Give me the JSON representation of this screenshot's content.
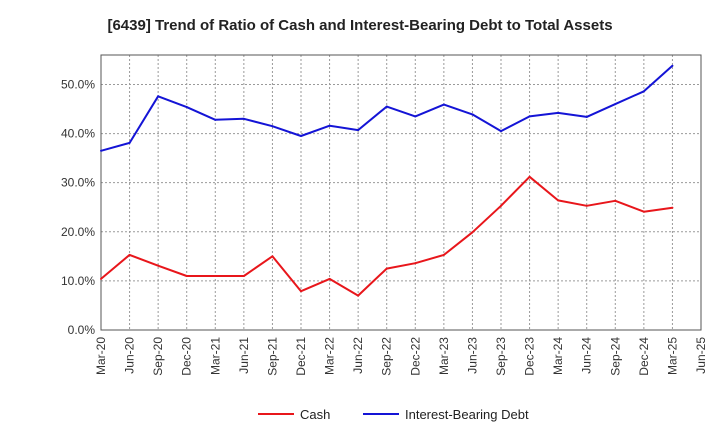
{
  "chart_data": {
    "type": "line",
    "title": "[6439]  Trend of Ratio of Cash and Interest-Bearing Debt to Total Assets",
    "xlabel": "",
    "ylabel": "",
    "x": [
      "Mar-20",
      "Jun-20",
      "Sep-20",
      "Dec-20",
      "Mar-21",
      "Jun-21",
      "Sep-21",
      "Dec-21",
      "Mar-22",
      "Jun-22",
      "Sep-22",
      "Dec-22",
      "Mar-23",
      "Jun-23",
      "Sep-23",
      "Dec-23",
      "Mar-24",
      "Jun-24",
      "Sep-24",
      "Dec-24",
      "Mar-25",
      "Jun-25"
    ],
    "y_ticks": [
      0,
      10,
      20,
      30,
      40,
      50
    ],
    "y_tick_labels": [
      "0.0%",
      "10.0%",
      "20.0%",
      "30.0%",
      "40.0%",
      "50.0%"
    ],
    "ylim": [
      0,
      56
    ],
    "grid": true,
    "legend_position": "bottom",
    "series": [
      {
        "name": "Cash",
        "color": "#e8161b",
        "values": [
          10.4,
          15.3,
          13.1,
          11.0,
          11.0,
          11.0,
          15.0,
          7.9,
          10.4,
          7.0,
          12.5,
          13.6,
          15.3,
          19.9,
          25.3,
          31.2,
          26.4,
          25.3,
          26.3,
          24.1,
          24.9,
          null
        ]
      },
      {
        "name": "Interest-Bearing Debt",
        "color": "#1414d6",
        "values": [
          36.5,
          38.1,
          47.6,
          45.4,
          42.8,
          43.0,
          41.5,
          39.5,
          41.6,
          40.7,
          45.5,
          43.5,
          45.9,
          43.9,
          40.5,
          43.5,
          44.2,
          43.4,
          46.0,
          48.6,
          53.8,
          null
        ]
      }
    ]
  }
}
